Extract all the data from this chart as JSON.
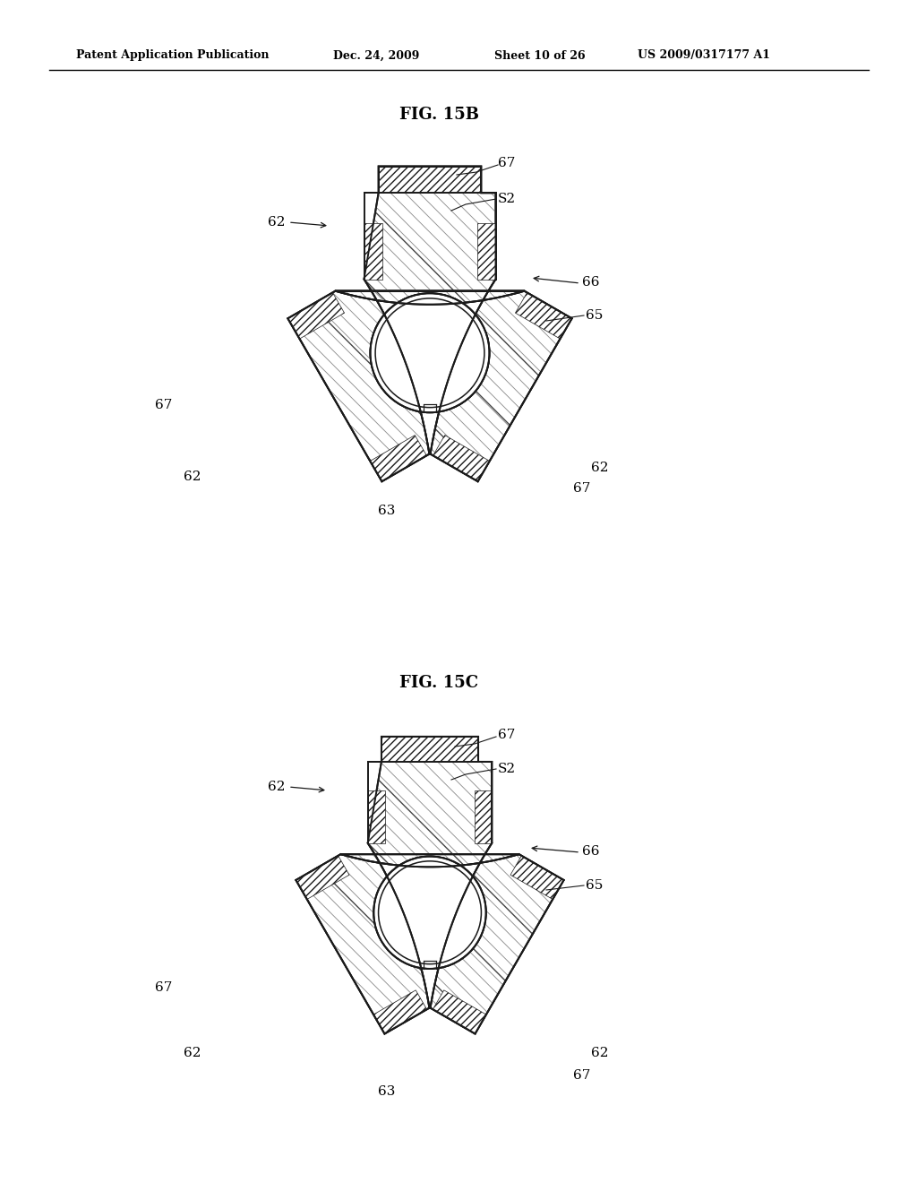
{
  "background_color": "#ffffff",
  "header_text": "Patent Application Publication",
  "header_date": "Dec. 24, 2009",
  "header_sheet": "Sheet 10 of 26",
  "header_patent": "US 2009/0317177 A1",
  "fig15b_title": "FIG. 15B",
  "fig15c_title": "FIG. 15C",
  "line_color": "#1a1a1a",
  "hatch_color": "#555555",
  "label_fontsize": 11,
  "title_fontsize": 13
}
